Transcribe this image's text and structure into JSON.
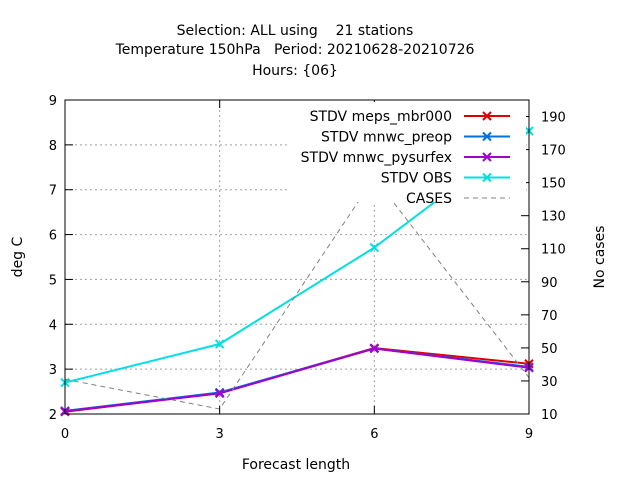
{
  "chart_data": {
    "type": "line",
    "title_lines": [
      "Selection: ALL using    21 stations",
      "Temperature 150hPa   Period: 20210628-20210726",
      "Hours: {06}"
    ],
    "xlabel": "Forecast length",
    "ylabel": "deg C",
    "y2label": "No cases",
    "x": [
      0,
      3,
      6,
      9
    ],
    "xticks": [
      "0",
      "3",
      "6",
      "9"
    ],
    "xlim": [
      0,
      9
    ],
    "ylim": [
      2,
      9
    ],
    "yticks": [
      "2",
      "3",
      "4",
      "5",
      "6",
      "7",
      "8",
      "9"
    ],
    "y2lim": [
      10,
      200
    ],
    "y2ticks": [
      "10",
      "30",
      "50",
      "70",
      "90",
      "110",
      "130",
      "150",
      "170",
      "190"
    ],
    "grid": true,
    "legend_position": "top-right",
    "series": [
      {
        "name": "STDV meps_mbr000",
        "axis": "y",
        "color": "#e00000",
        "marker": "x",
        "values": [
          2.05,
          2.47,
          3.47,
          3.12
        ]
      },
      {
        "name": "STDV mnwc_preop",
        "axis": "y",
        "color": "#0070e0",
        "marker": "x",
        "values": [
          2.07,
          2.48,
          3.46,
          3.05
        ]
      },
      {
        "name": "STDV mnwc_pysurfex",
        "axis": "y",
        "color": "#a000d0",
        "marker": "x",
        "values": [
          2.06,
          2.46,
          3.46,
          3.03
        ]
      },
      {
        "name": "STDV OBS",
        "axis": "y",
        "color": "#00e0e0",
        "marker": "x",
        "values": [
          2.7,
          3.56,
          5.71,
          8.31
        ]
      },
      {
        "name": "CASES",
        "axis": "y2",
        "color": "#808080",
        "marker": "none",
        "dashed": true,
        "values": [
          31,
          13,
          153,
          32
        ]
      }
    ]
  }
}
